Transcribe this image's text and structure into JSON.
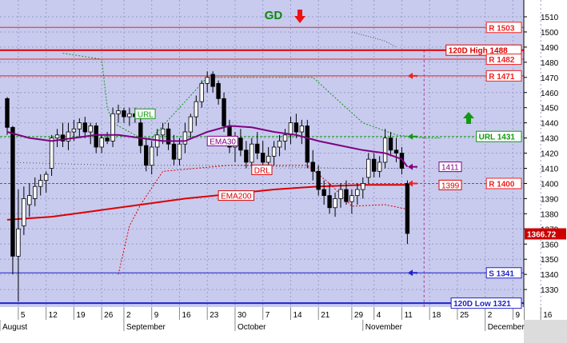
{
  "chart_data": {
    "type": "candlestick",
    "title": "GD",
    "title_color": "#118811",
    "y_axis": {
      "min": 1322,
      "max": 1516,
      "ticks": [
        1330,
        1340,
        1350,
        1360,
        1370,
        1380,
        1390,
        1400,
        1410,
        1420,
        1430,
        1440,
        1450,
        1460,
        1470,
        1480,
        1490,
        1500,
        1510
      ]
    },
    "x_axis": {
      "day_ticks": [
        {
          "label": "5",
          "t": 2
        },
        {
          "label": "12",
          "t": 7
        },
        {
          "label": "19",
          "t": 12
        },
        {
          "label": "26",
          "t": 17
        },
        {
          "label": "2",
          "t": 21
        },
        {
          "label": "9",
          "t": 26
        },
        {
          "label": "16",
          "t": 31
        },
        {
          "label": "23",
          "t": 36
        },
        {
          "label": "30",
          "t": 41
        },
        {
          "label": "7",
          "t": 46
        },
        {
          "label": "14",
          "t": 51
        },
        {
          "label": "21",
          "t": 56
        },
        {
          "label": "29",
          "t": 62
        },
        {
          "label": "4",
          "t": 66
        },
        {
          "label": "11",
          "t": 71
        },
        {
          "label": "18",
          "t": 76
        },
        {
          "label": "25",
          "t": 81
        },
        {
          "label": "2",
          "t": 86
        },
        {
          "label": "9",
          "t": 91
        },
        {
          "label": "16",
          "t": 96
        }
      ],
      "month_labels": [
        {
          "label": "August",
          "t": 0
        },
        {
          "label": "September",
          "t": 21
        },
        {
          "label": "October",
          "t": 41
        },
        {
          "label": "November",
          "t": 64
        },
        {
          "label": "December",
          "t": 86
        }
      ]
    },
    "colors": {
      "up": "#ffffff",
      "down": "#000000",
      "ema30": "#800080",
      "ema200": "#dd0000",
      "resistance": "#ee2222",
      "support": "#2222cc",
      "url_line": "#119911"
    },
    "candles": [
      {
        "t": 0,
        "o": 1456,
        "h": 1457,
        "l": 1432,
        "c": 1437
      },
      {
        "t": 1,
        "o": 1437,
        "h": 1438,
        "l": 1340,
        "c": 1352
      },
      {
        "t": 2,
        "o": 1352,
        "h": 1396,
        "l": 1322,
        "c": 1370
      },
      {
        "t": 3,
        "o": 1372,
        "h": 1398,
        "l": 1366,
        "c": 1390
      },
      {
        "t": 4,
        "o": 1386,
        "h": 1400,
        "l": 1378,
        "c": 1392
      },
      {
        "t": 5,
        "o": 1390,
        "h": 1404,
        "l": 1385,
        "c": 1398
      },
      {
        "t": 6,
        "o": 1398,
        "h": 1406,
        "l": 1392,
        "c": 1402
      },
      {
        "t": 7,
        "o": 1402,
        "h": 1408,
        "l": 1394,
        "c": 1406
      },
      {
        "t": 8,
        "o": 1410,
        "h": 1432,
        "l": 1405,
        "c": 1430
      },
      {
        "t": 9,
        "o": 1430,
        "h": 1436,
        "l": 1424,
        "c": 1432
      },
      {
        "t": 10,
        "o": 1432,
        "h": 1440,
        "l": 1424,
        "c": 1428
      },
      {
        "t": 11,
        "o": 1428,
        "h": 1440,
        "l": 1422,
        "c": 1434
      },
      {
        "t": 12,
        "o": 1434,
        "h": 1442,
        "l": 1428,
        "c": 1436
      },
      {
        "t": 13,
        "o": 1436,
        "h": 1443,
        "l": 1430,
        "c": 1440
      },
      {
        "t": 14,
        "o": 1440,
        "h": 1444,
        "l": 1430,
        "c": 1434
      },
      {
        "t": 15,
        "o": 1434,
        "h": 1440,
        "l": 1426,
        "c": 1438
      },
      {
        "t": 16,
        "o": 1438,
        "h": 1440,
        "l": 1420,
        "c": 1424
      },
      {
        "t": 17,
        "o": 1424,
        "h": 1432,
        "l": 1420,
        "c": 1430
      },
      {
        "t": 18,
        "o": 1430,
        "h": 1434,
        "l": 1426,
        "c": 1428
      },
      {
        "t": 19,
        "o": 1428,
        "h": 1450,
        "l": 1424,
        "c": 1446
      },
      {
        "t": 20,
        "o": 1446,
        "h": 1452,
        "l": 1440,
        "c": 1448
      },
      {
        "t": 21,
        "o": 1448,
        "h": 1450,
        "l": 1440,
        "c": 1444
      },
      {
        "t": 22,
        "o": 1444,
        "h": 1450,
        "l": 1438,
        "c": 1446
      },
      {
        "t": 23,
        "o": 1446,
        "h": 1450,
        "l": 1440,
        "c": 1444
      },
      {
        "t": 24,
        "o": 1440,
        "h": 1444,
        "l": 1420,
        "c": 1425
      },
      {
        "t": 25,
        "o": 1425,
        "h": 1430,
        "l": 1408,
        "c": 1412
      },
      {
        "t": 26,
        "o": 1412,
        "h": 1428,
        "l": 1406,
        "c": 1424
      },
      {
        "t": 27,
        "o": 1424,
        "h": 1436,
        "l": 1418,
        "c": 1432
      },
      {
        "t": 28,
        "o": 1432,
        "h": 1440,
        "l": 1426,
        "c": 1436
      },
      {
        "t": 29,
        "o": 1436,
        "h": 1440,
        "l": 1422,
        "c": 1426
      },
      {
        "t": 30,
        "o": 1426,
        "h": 1432,
        "l": 1412,
        "c": 1416
      },
      {
        "t": 31,
        "o": 1416,
        "h": 1430,
        "l": 1412,
        "c": 1426
      },
      {
        "t": 32,
        "o": 1426,
        "h": 1440,
        "l": 1420,
        "c": 1434
      },
      {
        "t": 33,
        "o": 1434,
        "h": 1446,
        "l": 1430,
        "c": 1444
      },
      {
        "t": 34,
        "o": 1444,
        "h": 1458,
        "l": 1438,
        "c": 1454
      },
      {
        "t": 35,
        "o": 1454,
        "h": 1468,
        "l": 1450,
        "c": 1466
      },
      {
        "t": 36,
        "o": 1466,
        "h": 1474,
        "l": 1460,
        "c": 1470
      },
      {
        "t": 37,
        "o": 1472,
        "h": 1474,
        "l": 1460,
        "c": 1464
      },
      {
        "t": 38,
        "o": 1466,
        "h": 1468,
        "l": 1452,
        "c": 1456
      },
      {
        "t": 39,
        "o": 1456,
        "h": 1460,
        "l": 1434,
        "c": 1438
      },
      {
        "t": 40,
        "o": 1438,
        "h": 1442,
        "l": 1420,
        "c": 1424
      },
      {
        "t": 41,
        "o": 1424,
        "h": 1434,
        "l": 1414,
        "c": 1430
      },
      {
        "t": 42,
        "o": 1430,
        "h": 1436,
        "l": 1418,
        "c": 1422
      },
      {
        "t": 43,
        "o": 1422,
        "h": 1428,
        "l": 1410,
        "c": 1414
      },
      {
        "t": 44,
        "o": 1414,
        "h": 1430,
        "l": 1410,
        "c": 1426
      },
      {
        "t": 45,
        "o": 1426,
        "h": 1434,
        "l": 1416,
        "c": 1420
      },
      {
        "t": 46,
        "o": 1420,
        "h": 1428,
        "l": 1410,
        "c": 1414
      },
      {
        "t": 47,
        "o": 1414,
        "h": 1424,
        "l": 1408,
        "c": 1418
      },
      {
        "t": 48,
        "o": 1418,
        "h": 1428,
        "l": 1412,
        "c": 1424
      },
      {
        "t": 49,
        "o": 1424,
        "h": 1432,
        "l": 1418,
        "c": 1428
      },
      {
        "t": 50,
        "o": 1428,
        "h": 1436,
        "l": 1422,
        "c": 1432
      },
      {
        "t": 51,
        "o": 1432,
        "h": 1444,
        "l": 1426,
        "c": 1440
      },
      {
        "t": 52,
        "o": 1440,
        "h": 1446,
        "l": 1430,
        "c": 1434
      },
      {
        "t": 53,
        "o": 1434,
        "h": 1442,
        "l": 1426,
        "c": 1438
      },
      {
        "t": 54,
        "o": 1438,
        "h": 1442,
        "l": 1410,
        "c": 1414
      },
      {
        "t": 55,
        "o": 1414,
        "h": 1422,
        "l": 1402,
        "c": 1408
      },
      {
        "t": 56,
        "o": 1408,
        "h": 1412,
        "l": 1392,
        "c": 1396
      },
      {
        "t": 57,
        "o": 1396,
        "h": 1402,
        "l": 1386,
        "c": 1392
      },
      {
        "t": 58,
        "o": 1392,
        "h": 1400,
        "l": 1380,
        "c": 1384
      },
      {
        "t": 59,
        "o": 1384,
        "h": 1394,
        "l": 1378,
        "c": 1390
      },
      {
        "t": 60,
        "o": 1390,
        "h": 1400,
        "l": 1384,
        "c": 1396
      },
      {
        "t": 61,
        "o": 1396,
        "h": 1402,
        "l": 1386,
        "c": 1388
      },
      {
        "t": 62,
        "o": 1388,
        "h": 1396,
        "l": 1380,
        "c": 1392
      },
      {
        "t": 63,
        "o": 1392,
        "h": 1400,
        "l": 1386,
        "c": 1396
      },
      {
        "t": 64,
        "o": 1396,
        "h": 1404,
        "l": 1390,
        "c": 1400
      },
      {
        "t": 65,
        "o": 1404,
        "h": 1420,
        "l": 1400,
        "c": 1416
      },
      {
        "t": 66,
        "o": 1416,
        "h": 1420,
        "l": 1404,
        "c": 1408
      },
      {
        "t": 67,
        "o": 1408,
        "h": 1418,
        "l": 1404,
        "c": 1414
      },
      {
        "t": 68,
        "o": 1414,
        "h": 1436,
        "l": 1410,
        "c": 1430
      },
      {
        "t": 69,
        "o": 1430,
        "h": 1434,
        "l": 1418,
        "c": 1422
      },
      {
        "t": 70,
        "o": 1422,
        "h": 1430,
        "l": 1414,
        "c": 1420
      },
      {
        "t": 71,
        "o": 1420,
        "h": 1424,
        "l": 1406,
        "c": 1410
      },
      {
        "t": 72,
        "o": 1400,
        "h": 1402,
        "l": 1360,
        "c": 1367
      }
    ],
    "ema30": [
      [
        0,
        1434
      ],
      [
        4,
        1430
      ],
      [
        8,
        1428
      ],
      [
        12,
        1430
      ],
      [
        16,
        1432
      ],
      [
        20,
        1432
      ],
      [
        24,
        1430
      ],
      [
        28,
        1428
      ],
      [
        32,
        1428
      ],
      [
        36,
        1434
      ],
      [
        40,
        1438
      ],
      [
        44,
        1437
      ],
      [
        48,
        1434
      ],
      [
        52,
        1432
      ],
      [
        56,
        1428
      ],
      [
        60,
        1425
      ],
      [
        64,
        1422
      ],
      [
        68,
        1420
      ],
      [
        71,
        1416
      ],
      [
        72,
        1411
      ]
    ],
    "ema200": [
      [
        0,
        1376
      ],
      [
        8,
        1378
      ],
      [
        16,
        1382
      ],
      [
        24,
        1386
      ],
      [
        32,
        1390
      ],
      [
        40,
        1393
      ],
      [
        48,
        1396
      ],
      [
        56,
        1398
      ],
      [
        64,
        1399
      ],
      [
        72,
        1399
      ]
    ],
    "url_line": [
      [
        10,
        1486
      ],
      [
        17,
        1482
      ],
      [
        18,
        1450
      ],
      [
        19,
        1440
      ],
      [
        24,
        1430
      ],
      [
        26,
        1430
      ],
      [
        36,
        1470
      ],
      [
        55,
        1470
      ],
      [
        58,
        1460
      ],
      [
        64,
        1440
      ],
      [
        70,
        1432
      ],
      [
        75,
        1430
      ],
      [
        78,
        1430
      ]
    ],
    "drl_line": [
      [
        20,
        1340
      ],
      [
        22,
        1372
      ],
      [
        24,
        1386
      ],
      [
        28,
        1408
      ],
      [
        40,
        1412
      ],
      [
        54,
        1412
      ],
      [
        58,
        1400
      ],
      [
        62,
        1385
      ],
      [
        68,
        1386
      ],
      [
        72,
        1383
      ]
    ],
    "upper_dotted": [
      [
        62,
        1500
      ],
      [
        64,
        1498
      ],
      [
        66,
        1496
      ],
      [
        68,
        1494
      ],
      [
        70,
        1490
      ]
    ],
    "mid_dotted": [
      [
        0,
        1414
      ],
      [
        20,
        1412
      ],
      [
        40,
        1412
      ],
      [
        60,
        1410
      ],
      [
        72,
        1410
      ]
    ],
    "vertical_marker_t": 75,
    "h_lines": [
      {
        "label": "R 1503",
        "value": 1503,
        "color": "#ee2222",
        "style": "solid",
        "width": 1
      },
      {
        "label": "120D High 1488",
        "value": 1488,
        "color": "#dd0000",
        "style": "solid",
        "width": 2
      },
      {
        "label": "R 1482",
        "value": 1482,
        "color": "#ee2222",
        "style": "solid",
        "width": 1
      },
      {
        "label": "R 1471",
        "value": 1471,
        "color": "#ee2222",
        "style": "solid",
        "width": 1
      },
      {
        "label": "URL 1431",
        "value": 1431,
        "color": "#119911",
        "style": "dashed",
        "width": 1
      },
      {
        "label": "R 1400",
        "value": 1400,
        "color": "#ee2222",
        "style": "dashed",
        "width": 1
      },
      {
        "label": "S 1341",
        "value": 1341,
        "color": "#2222cc",
        "style": "solid",
        "width": 1
      },
      {
        "label": "120D Low 1321",
        "value": 1321,
        "color": "#2222cc",
        "style": "solid",
        "width": 2
      }
    ],
    "right_markers": [
      {
        "value": 1471,
        "color": "#ee2222"
      },
      {
        "value": 1431,
        "color": "#119911"
      },
      {
        "value": 1411,
        "color": "#800080"
      },
      {
        "value": 1400,
        "color": "#ee2222"
      },
      {
        "value": 1341,
        "color": "#2222cc"
      }
    ],
    "value_tags": [
      {
        "label": "1411",
        "value": 1411,
        "color": "#800080"
      },
      {
        "label": "1399",
        "value": 1399,
        "color": "#dd0000"
      }
    ],
    "annotations": [
      {
        "label": "URL",
        "t": 23,
        "value": 1446,
        "color": "#119911"
      },
      {
        "label": "EMA30",
        "t": 36,
        "value": 1428,
        "color": "#800080"
      },
      {
        "label": "DRL",
        "t": 44,
        "value": 1409,
        "color": "#dd0000"
      },
      {
        "label": "EMA200",
        "t": 38,
        "value": 1392,
        "color": "#dd0000"
      }
    ],
    "last_price": {
      "label": "1366.72",
      "value": 1366.72
    },
    "arrows": [
      {
        "name": "down-arrow",
        "direction": "down",
        "color": "#ee1111",
        "position": "top-center"
      },
      {
        "name": "up-arrow",
        "direction": "up",
        "color": "#119911",
        "position": "right"
      }
    ]
  }
}
